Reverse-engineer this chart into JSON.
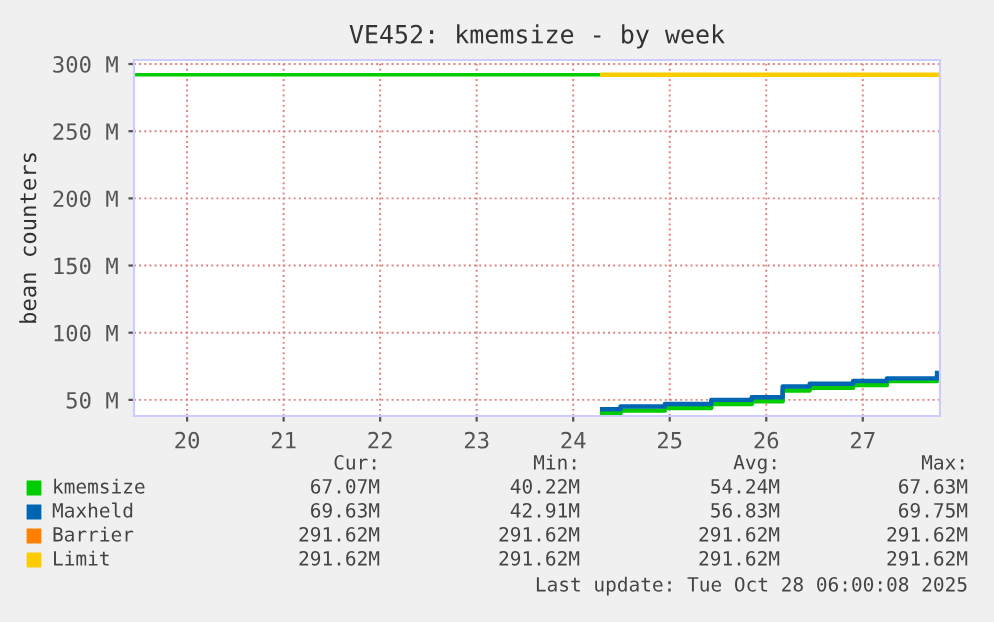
{
  "chart_data": {
    "type": "step",
    "title": "VE452: kmemsize - by week",
    "ylabel": "bean counters",
    "xlim": [
      19.95,
      28.3
    ],
    "ylim": [
      38,
      303
    ],
    "xticks": [
      {
        "value": 20.5,
        "label": "20"
      },
      {
        "value": 21.5,
        "label": "21"
      },
      {
        "value": 22.5,
        "label": "22"
      },
      {
        "value": 23.5,
        "label": "23"
      },
      {
        "value": 24.5,
        "label": "24"
      },
      {
        "value": 25.5,
        "label": "25"
      },
      {
        "value": 26.5,
        "label": "26"
      },
      {
        "value": 27.5,
        "label": "27"
      }
    ],
    "yticks": [
      {
        "value": 50,
        "label": "50 M"
      },
      {
        "value": 100,
        "label": "100 M"
      },
      {
        "value": 150,
        "label": "150 M"
      },
      {
        "value": 200,
        "label": "200 M"
      },
      {
        "value": 250,
        "label": "250 M"
      },
      {
        "value": 300,
        "label": "300 M"
      }
    ],
    "grid": true,
    "legend": "bottom",
    "line_style": "solid",
    "series": [
      {
        "name": "kmemsize",
        "color": "#00cc00",
        "x": [
          24.8,
          24.99,
          25.45,
          25.93,
          26.35,
          26.67,
          26.95,
          27.4,
          27.75,
          28.27
        ],
        "values": [
          40,
          42,
          44,
          47,
          49,
          57,
          59,
          61,
          64,
          68
        ]
      },
      {
        "name": "Maxheld",
        "color": "#0066b3",
        "x": [
          24.8,
          24.99,
          25.45,
          25.93,
          26.35,
          26.67,
          26.95,
          27.4,
          27.75,
          28.27
        ],
        "values": [
          43,
          45,
          47,
          50,
          52,
          60,
          62,
          64,
          66,
          70
        ]
      },
      {
        "name": "Barrier",
        "color": "#ff8000"
      },
      {
        "name": "Limit",
        "color": "#ffcc00",
        "x": [
          24.8,
          28.27
        ],
        "values": [
          292,
          292
        ]
      }
    ],
    "ref_lines": [
      {
        "axis": "y",
        "value": 292,
        "label": null,
        "color": "#00cc00"
      }
    ],
    "annotations": [
      "Cur:",
      "Min:",
      "Avg:",
      "Max:",
      "67.07M",
      "40.22M",
      "54.24M",
      "67.63M",
      "69.63M",
      "42.91M",
      "56.83M",
      "69.75M",
      "291.62M",
      "291.62M",
      "291.62M",
      "291.62M",
      "291.62M",
      "291.62M",
      "291.62M",
      "291.62M",
      "Last update: Tue Oct 28 06:00:08 2025"
    ]
  }
}
